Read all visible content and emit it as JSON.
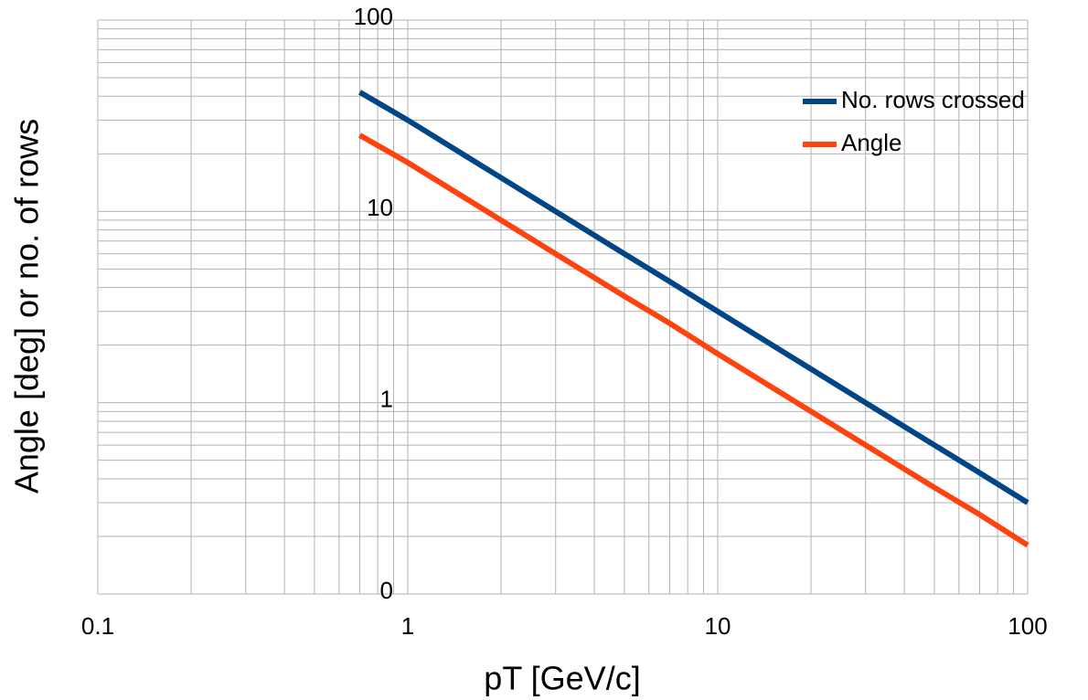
{
  "chart_data": {
    "type": "line",
    "x_label": "pT [GeV/c]",
    "y_label": "Angle [deg] or no. of rows",
    "x": [
      0.7,
      1,
      2,
      3,
      5,
      7,
      10,
      20,
      30,
      50,
      70,
      100
    ],
    "series": [
      {
        "name": "No. rows crossed",
        "color": "#004586",
        "values": [
          42,
          30,
          15,
          10,
          6,
          4.3,
          3,
          1.5,
          1,
          0.6,
          0.43,
          0.3
        ]
      },
      {
        "name": "Angle",
        "color": "#ff420e",
        "values": [
          25,
          18,
          9,
          6,
          3.6,
          2.6,
          1.8,
          0.9,
          0.6,
          0.36,
          0.26,
          0.18
        ]
      }
    ],
    "xlim": [
      0.1,
      100
    ],
    "xticks": [
      0.1,
      1,
      10,
      100
    ],
    "ylim": [
      0.1,
      100
    ],
    "yticks": [
      {
        "value": 0.1,
        "label": "0"
      },
      1,
      10,
      100
    ],
    "x_log": true,
    "y_log": true,
    "grid": true,
    "minor_grid": true,
    "y_axis_at_x": 1,
    "legend": "upper right"
  }
}
